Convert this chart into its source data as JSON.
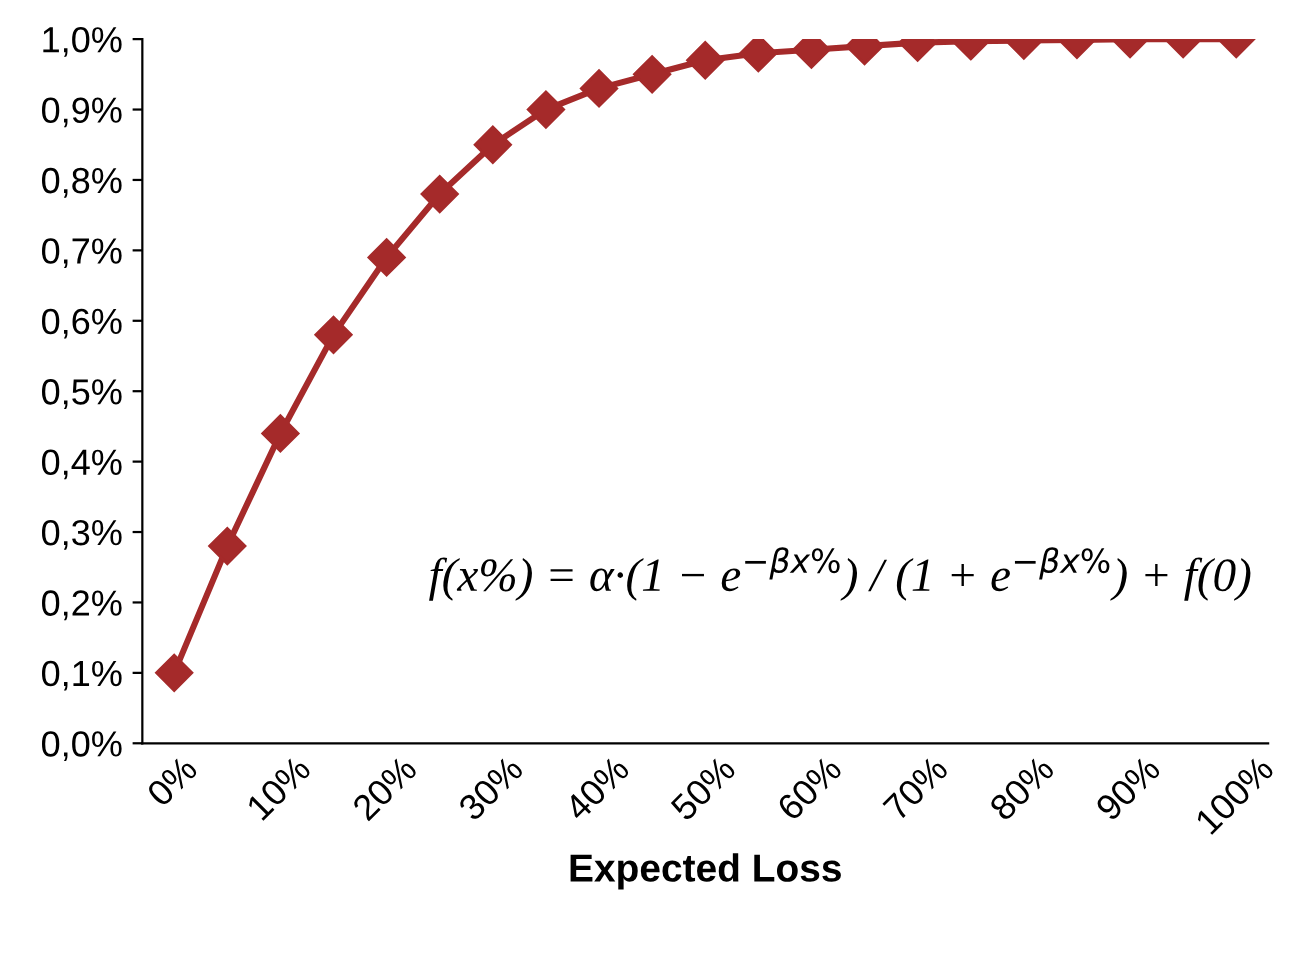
{
  "chart_data": {
    "type": "line",
    "xlabel": "Expected Loss",
    "categories": [
      "0%",
      null,
      "10%",
      null,
      "20%",
      null,
      "30%",
      null,
      "40%",
      null,
      "50%",
      null,
      "60%",
      null,
      "70%",
      null,
      "80%",
      null,
      "90%",
      null,
      "100%"
    ],
    "series": [
      {
        "color": "#a52a2a",
        "values": [
          0.1,
          0.28,
          0.44,
          0.58,
          0.69,
          0.78,
          0.85,
          0.9,
          0.93,
          0.95,
          0.97,
          0.98,
          0.985,
          0.99,
          0.995,
          0.997,
          0.998,
          0.999,
          1.0,
          1.0,
          1.0
        ]
      }
    ],
    "ylim": [
      0,
      1.0
    ],
    "yticks": [
      {
        "value": 0,
        "label": "0,0%"
      },
      {
        "value": 0.1,
        "label": "0,1%"
      },
      {
        "value": 0.2,
        "label": "0,2%"
      },
      {
        "value": 0.3,
        "label": "0,3%"
      },
      {
        "value": 0.4,
        "label": "0,4%"
      },
      {
        "value": 0.5,
        "label": "0,5%"
      },
      {
        "value": 0.6,
        "label": "0,6%"
      },
      {
        "value": 0.7,
        "label": "0,7%"
      },
      {
        "value": 0.8,
        "label": "0,8%"
      },
      {
        "value": 0.9,
        "label": "0,9%"
      },
      {
        "value": 1.0,
        "label": "1,0%"
      }
    ],
    "annotations": [
      "f(x%) = α·(1 − e$^{−βx%}$) / (1 + e$^{−βx%}$) + f(0)"
    ],
    "marker": "diamond",
    "line_style": "solid",
    "grid": false,
    "legend": false
  }
}
